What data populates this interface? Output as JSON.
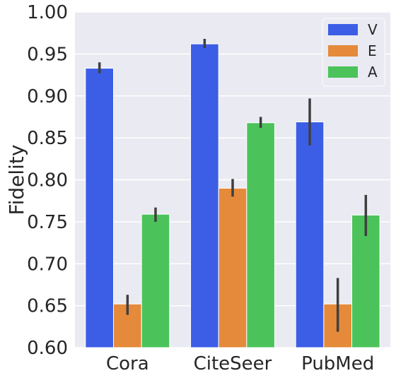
{
  "chart_data": {
    "type": "bar",
    "title": "",
    "xlabel": "",
    "ylabel": "Fidelity",
    "ylim": [
      0.6,
      1.0
    ],
    "yticks": [
      "0.60",
      "0.65",
      "0.70",
      "0.75",
      "0.80",
      "0.85",
      "0.90",
      "0.95",
      "1.00"
    ],
    "categories": [
      "Cora",
      "CiteSeer",
      "PubMed"
    ],
    "grid": true,
    "legend_position": "top-right",
    "series": [
      {
        "name": "V",
        "color": "#3c5ee6",
        "values": [
          0.933,
          0.962,
          0.869
        ],
        "err_low": [
          0.927,
          0.957,
          0.841
        ],
        "err_high": [
          0.94,
          0.968,
          0.897
        ]
      },
      {
        "name": "E",
        "color": "#e48a3a",
        "values": [
          0.652,
          0.79,
          0.652
        ],
        "err_low": [
          0.639,
          0.78,
          0.619
        ],
        "err_high": [
          0.663,
          0.801,
          0.683
        ]
      },
      {
        "name": "A",
        "color": "#4cc35a",
        "values": [
          0.759,
          0.868,
          0.758
        ],
        "err_low": [
          0.75,
          0.862,
          0.733
        ],
        "err_high": [
          0.767,
          0.875,
          0.782
        ]
      }
    ],
    "background_color": "#eaeaf2",
    "error_bar_color": "#3f3f3f"
  }
}
